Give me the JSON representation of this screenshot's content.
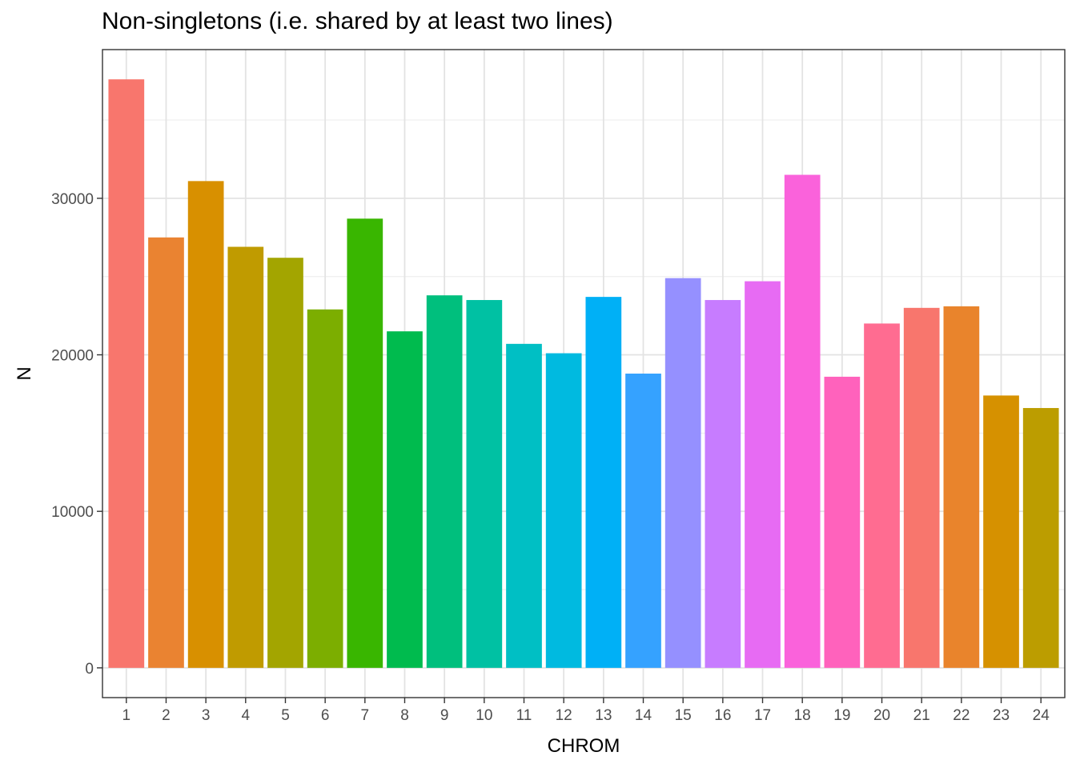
{
  "chart_data": {
    "type": "bar",
    "title": "Non-singletons (i.e. shared by at least two lines)",
    "xlabel": "CHROM",
    "ylabel": "N",
    "categories": [
      "1",
      "2",
      "3",
      "4",
      "5",
      "6",
      "7",
      "8",
      "9",
      "10",
      "11",
      "12",
      "13",
      "14",
      "15",
      "16",
      "17",
      "18",
      "19",
      "20",
      "21",
      "22",
      "23",
      "24"
    ],
    "values": [
      37600,
      27500,
      31100,
      26900,
      26200,
      22900,
      28700,
      21500,
      23800,
      23500,
      20700,
      20100,
      23700,
      18800,
      24900,
      23500,
      24700,
      31500,
      18600,
      22000,
      23000,
      23100,
      17400,
      16600
    ],
    "colors": [
      "#F8766D",
      "#EA8331",
      "#D89000",
      "#C09B00",
      "#A3A500",
      "#7CAE00",
      "#39B600",
      "#00BB4E",
      "#00BF7D",
      "#00C1A3",
      "#00BFC4",
      "#00BAE0",
      "#00B0F6",
      "#35A2FF",
      "#9590FF",
      "#C77CFF",
      "#E76BF3",
      "#FA62DB",
      "#FF62BC",
      "#FF6C91",
      "#F8766D",
      "#E9842C",
      "#D69100",
      "#BC9D00"
    ],
    "yticks": [
      0,
      10000,
      20000,
      30000
    ],
    "ylim": [
      -1900,
      39500
    ],
    "grid": true,
    "legend": "none"
  }
}
